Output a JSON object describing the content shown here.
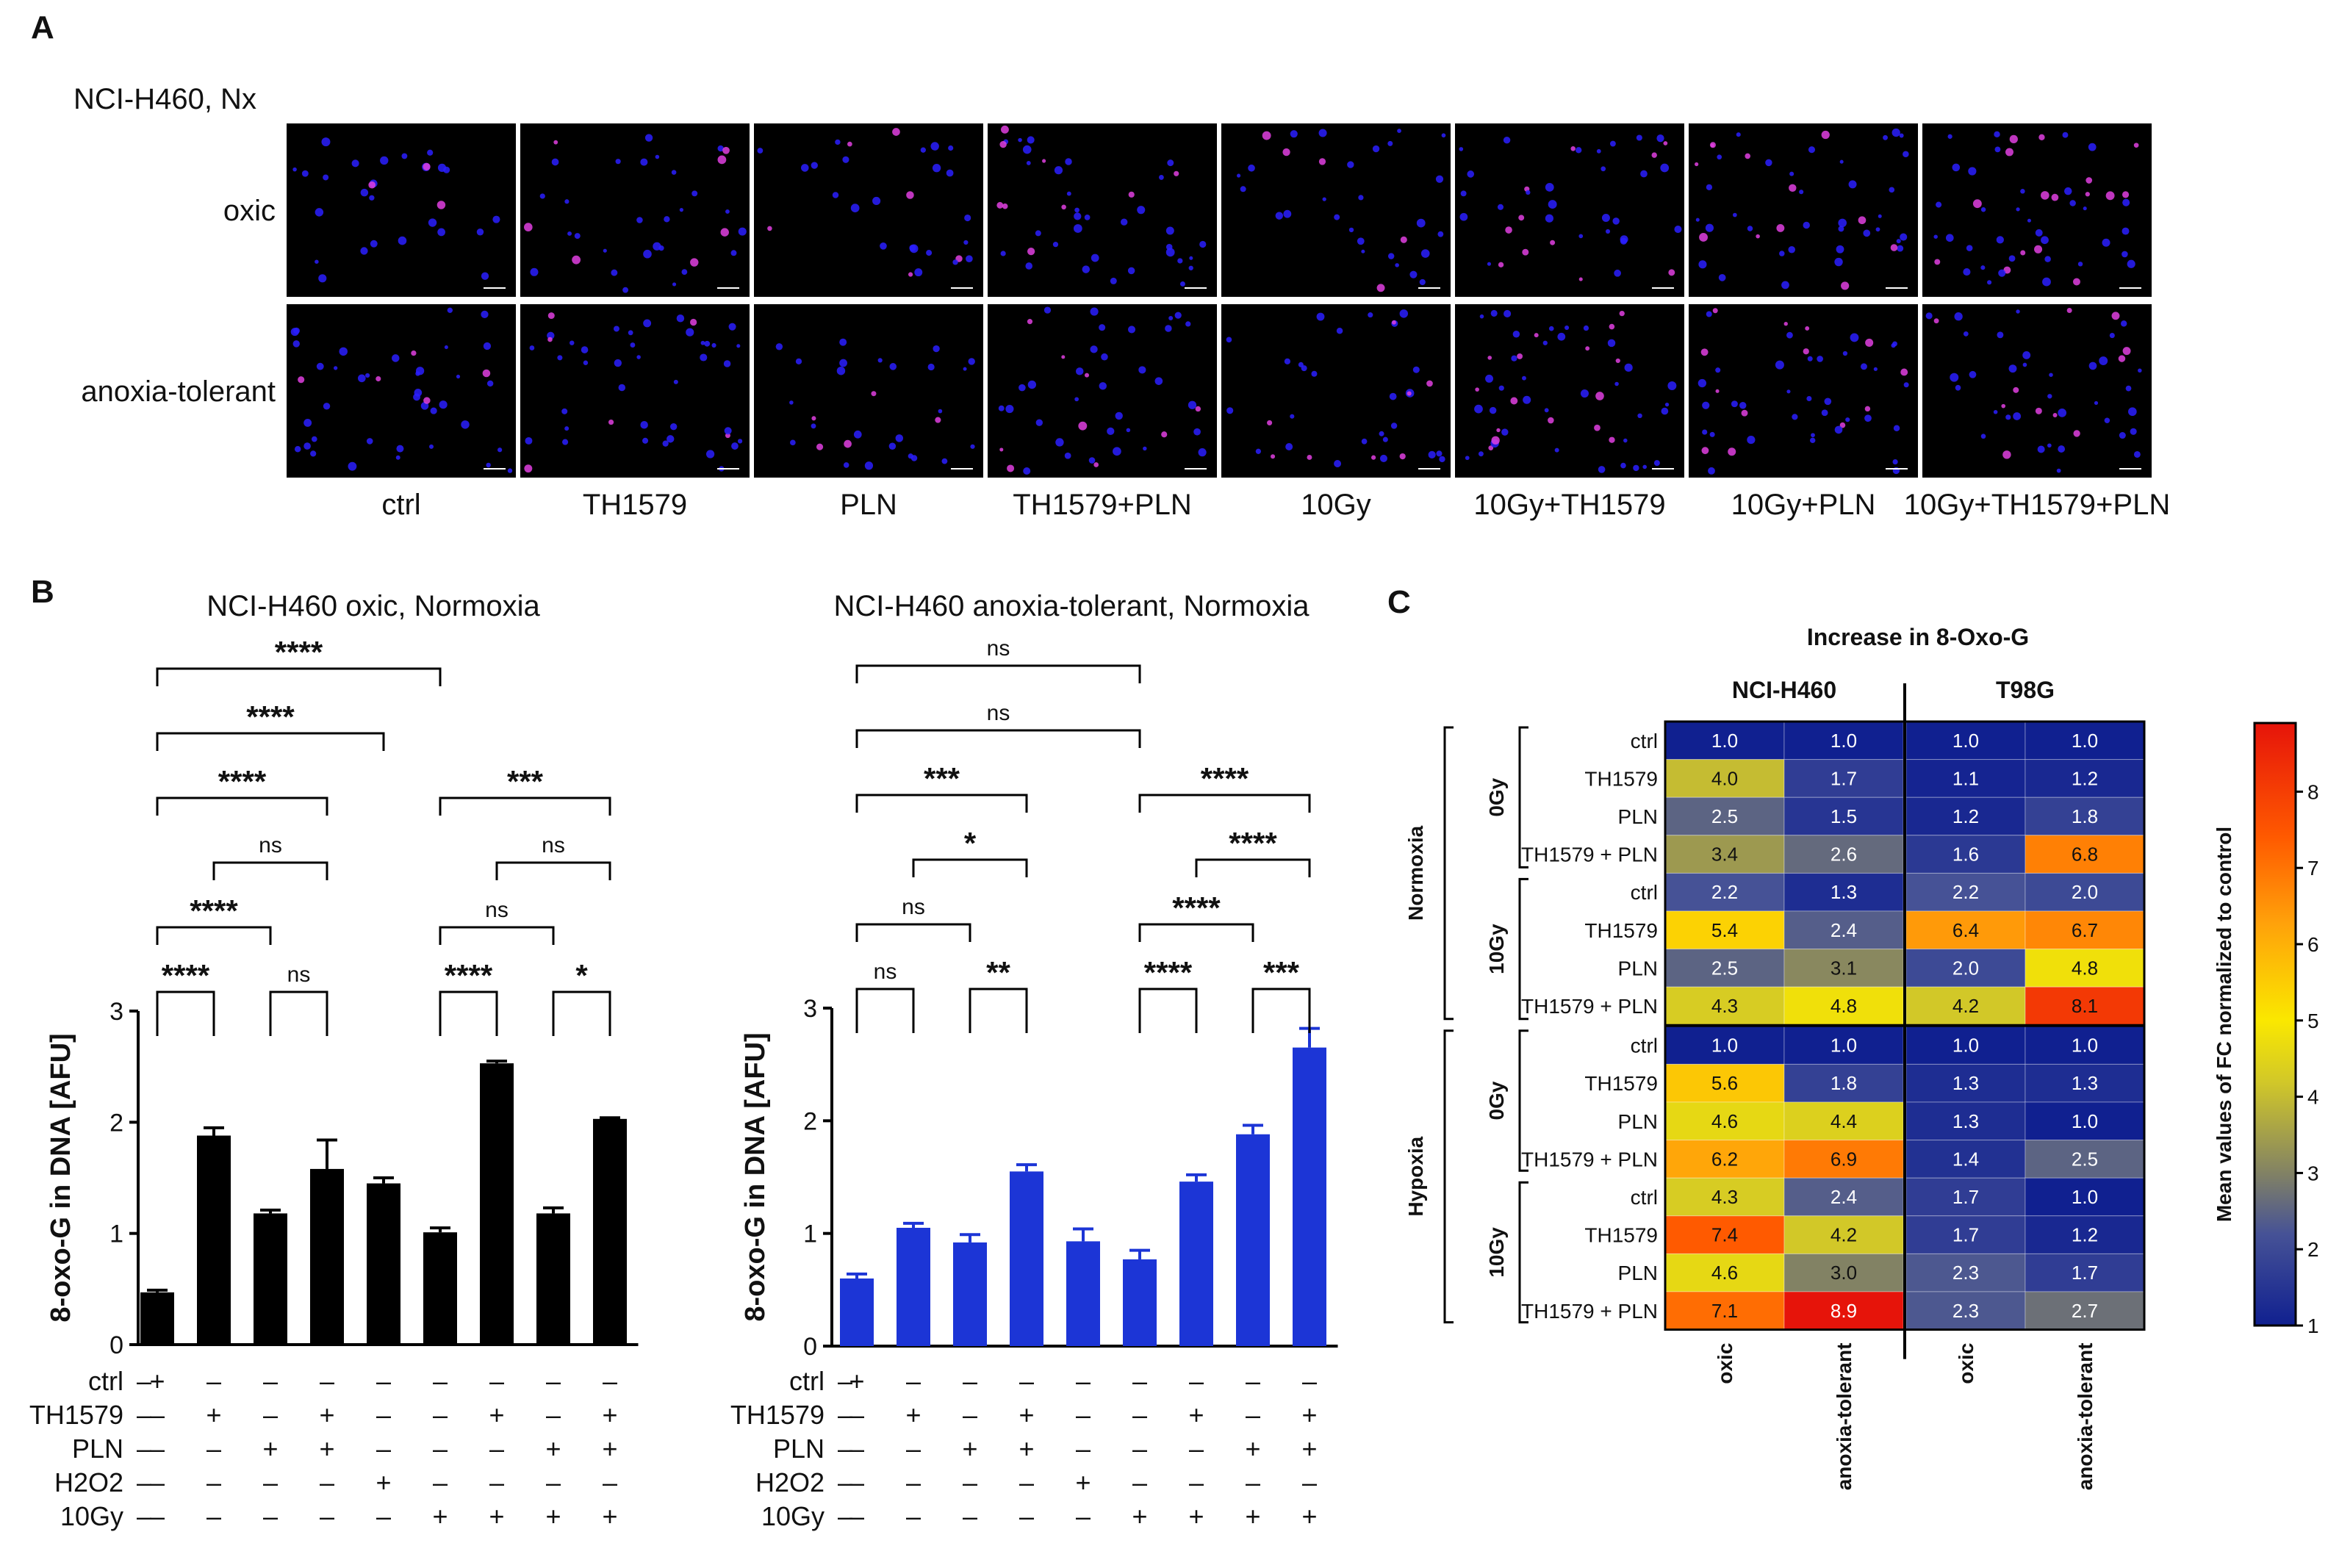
{
  "panel_a": {
    "label": "A",
    "title": "NCI-H460, Nx",
    "rows": [
      "oxic",
      "anoxia-tolerant"
    ],
    "columns": [
      "ctrl",
      "TH1579",
      "PLN",
      "TH1579+PLN",
      "10Gy",
      "10Gy+TH1579",
      "10Gy+PLN",
      "10Gy+TH1579+PLN"
    ],
    "colors": {
      "background": "#000000",
      "nuclei": "#2a1fff",
      "foci": "#e040e0"
    }
  },
  "panel_b_label": "B",
  "panel_c_label": "C",
  "chart_data": [
    {
      "type": "bar",
      "title": "NCI-H460 oxic, Normoxia",
      "ylabel": "8-oxo-G in DNA [AFU]",
      "ylim": [
        0,
        3
      ],
      "yticks": [
        "0",
        "1",
        "2",
        "3"
      ],
      "color": "#000000",
      "values": [
        0.47,
        1.88,
        1.18,
        1.58,
        1.45,
        1.01,
        2.53,
        1.18,
        2.03
      ],
      "errors": [
        0.02,
        0.07,
        0.03,
        0.26,
        0.05,
        0.04,
        0.02,
        0.05,
        0.01
      ],
      "treatments": [
        {
          "name": "ctrl",
          "signs": [
            "+",
            "–",
            "–",
            "–",
            "–",
            "–",
            "–",
            "–",
            "–"
          ]
        },
        {
          "name": "TH1579",
          "signs": [
            "–",
            "+",
            "–",
            "+",
            "–",
            "–",
            "+",
            "–",
            "+"
          ]
        },
        {
          "name": "PLN",
          "signs": [
            "–",
            "–",
            "+",
            "+",
            "–",
            "–",
            "–",
            "+",
            "+"
          ]
        },
        {
          "name": "H2O2",
          "signs": [
            "–",
            "–",
            "–",
            "–",
            "+",
            "–",
            "–",
            "–",
            "–"
          ]
        },
        {
          "name": "10Gy",
          "signs": [
            "–",
            "–",
            "–",
            "–",
            "–",
            "+",
            "+",
            "+",
            "+"
          ]
        }
      ],
      "brackets": [
        {
          "a": 0,
          "b": 1,
          "label": "****",
          "level": 0
        },
        {
          "a": 2,
          "b": 3,
          "label": "ns",
          "level": 0
        },
        {
          "a": 0,
          "b": 2,
          "label": "****",
          "level": 1
        },
        {
          "a": 1,
          "b": 3,
          "label": "ns",
          "level": 2
        },
        {
          "a": 0,
          "b": 3,
          "label": "****",
          "level": 3
        },
        {
          "a": 0,
          "b": 4,
          "label": "****",
          "level": 4
        },
        {
          "a": 0,
          "b": 5,
          "label": "****",
          "level": 5
        },
        {
          "a": 5,
          "b": 6,
          "label": "****",
          "level": 0
        },
        {
          "a": 7,
          "b": 8,
          "label": "*",
          "level": 0
        },
        {
          "a": 5,
          "b": 7,
          "label": "ns",
          "level": 1
        },
        {
          "a": 6,
          "b": 8,
          "label": "ns",
          "level": 2
        },
        {
          "a": 5,
          "b": 8,
          "label": "***",
          "level": 3
        }
      ]
    },
    {
      "type": "bar",
      "title": "NCI-H460 anoxia-tolerant, Normoxia",
      "ylabel": "8-oxo-G in DNA [AFU]",
      "ylim": [
        0,
        3
      ],
      "yticks": [
        "0",
        "1",
        "2",
        "3"
      ],
      "color": "#1c35d6",
      "values": [
        0.6,
        1.05,
        0.92,
        1.55,
        0.93,
        0.77,
        1.46,
        1.88,
        2.65
      ],
      "errors": [
        0.04,
        0.04,
        0.07,
        0.06,
        0.11,
        0.08,
        0.06,
        0.08,
        0.17
      ],
      "treatments": [
        {
          "name": "ctrl",
          "signs": [
            "+",
            "–",
            "–",
            "–",
            "–",
            "–",
            "–",
            "–",
            "–"
          ]
        },
        {
          "name": "TH1579",
          "signs": [
            "–",
            "+",
            "–",
            "+",
            "–",
            "–",
            "+",
            "–",
            "+"
          ]
        },
        {
          "name": "PLN",
          "signs": [
            "–",
            "–",
            "+",
            "+",
            "–",
            "–",
            "–",
            "+",
            "+"
          ]
        },
        {
          "name": "H2O2",
          "signs": [
            "–",
            "–",
            "–",
            "–",
            "+",
            "–",
            "–",
            "–",
            "–"
          ]
        },
        {
          "name": "10Gy",
          "signs": [
            "–",
            "–",
            "–",
            "–",
            "–",
            "+",
            "+",
            "+",
            "+"
          ]
        }
      ],
      "brackets": [
        {
          "a": 0,
          "b": 1,
          "label": "ns",
          "level": 0
        },
        {
          "a": 2,
          "b": 3,
          "label": "**",
          "level": 0
        },
        {
          "a": 0,
          "b": 2,
          "label": "ns",
          "level": 1
        },
        {
          "a": 1,
          "b": 3,
          "label": "*",
          "level": 2
        },
        {
          "a": 0,
          "b": 3,
          "label": "***",
          "level": 3
        },
        {
          "a": 0,
          "b": 5,
          "label": "ns",
          "level": 4
        },
        {
          "a": 0,
          "b": 5,
          "label": "ns",
          "level": 5
        },
        {
          "a": 5,
          "b": 6,
          "label": "****",
          "level": 0
        },
        {
          "a": 7,
          "b": 8,
          "label": "***",
          "level": 0
        },
        {
          "a": 5,
          "b": 7,
          "label": "****",
          "level": 1
        },
        {
          "a": 6,
          "b": 8,
          "label": "****",
          "level": 2
        },
        {
          "a": 5,
          "b": 8,
          "label": "****",
          "level": 3
        }
      ]
    },
    {
      "type": "heatmap",
      "title": "Increase in 8-Oxo-G",
      "column_groups": [
        "NCI-H460",
        "T98G"
      ],
      "columns": [
        "oxic",
        "anoxia-tolerant",
        "oxic",
        "anoxia-tolerant"
      ],
      "conditions": [
        "Normoxia",
        "Hypoxia"
      ],
      "dose_groups": [
        "0Gy",
        "10Gy",
        "0Gy",
        "10Gy"
      ],
      "row_labels": [
        "ctrl",
        "TH1579",
        "PLN",
        "TH1579 + PLN",
        "ctrl",
        "TH1579",
        "PLN",
        "TH1579 + PLN",
        "ctrl",
        "TH1579",
        "PLN",
        "TH1579 + PLN",
        "ctrl",
        "TH1579",
        "PLN",
        "TH1579 + PLN"
      ],
      "values": [
        [
          1.0,
          1.0,
          1.0,
          1.0
        ],
        [
          4.0,
          1.7,
          1.1,
          1.2
        ],
        [
          2.5,
          1.5,
          1.2,
          1.8
        ],
        [
          3.4,
          2.6,
          1.6,
          6.8
        ],
        [
          2.2,
          1.3,
          2.2,
          2.0
        ],
        [
          5.4,
          2.4,
          6.4,
          6.7
        ],
        [
          2.5,
          3.1,
          2.0,
          4.8
        ],
        [
          4.3,
          4.8,
          4.2,
          8.1
        ],
        [
          1.0,
          1.0,
          1.0,
          1.0
        ],
        [
          5.6,
          1.8,
          1.3,
          1.3
        ],
        [
          4.6,
          4.4,
          1.3,
          1.0
        ],
        [
          6.2,
          6.9,
          1.4,
          2.5
        ],
        [
          4.3,
          2.4,
          1.7,
          1.0
        ],
        [
          7.4,
          4.2,
          1.7,
          1.2
        ],
        [
          4.6,
          3.0,
          2.3,
          1.7
        ],
        [
          7.1,
          8.9,
          2.3,
          2.7
        ]
      ],
      "colorbar": {
        "label": "Mean values of FC normalized to control",
        "min": 1,
        "max": 8.9,
        "ticks": [
          1,
          2,
          3,
          4,
          5,
          6,
          7,
          8
        ]
      }
    }
  ]
}
